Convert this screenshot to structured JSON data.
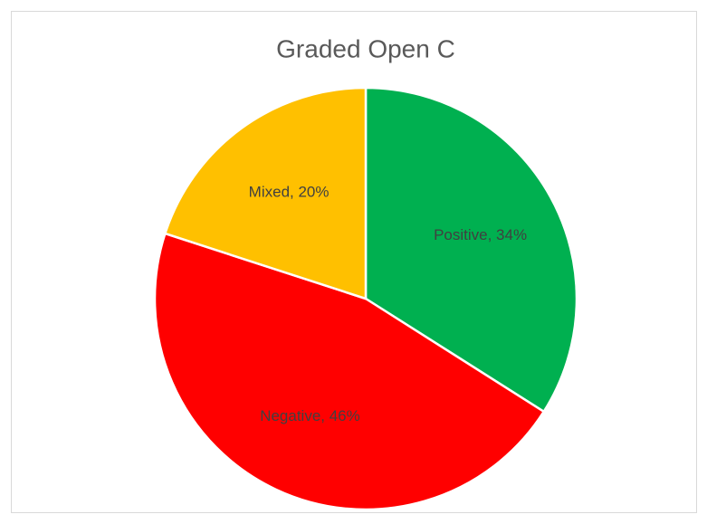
{
  "chart_data": {
    "type": "pie",
    "title": "Graded Open C",
    "categories": [
      "Positive",
      "Negative",
      "Mixed"
    ],
    "values": [
      34,
      46,
      20
    ],
    "value_labels": [
      "Positive, 34%",
      "Negative, 46%",
      "Mixed, 20%"
    ],
    "colors": [
      "#00b050",
      "#ff0000",
      "#ffc000"
    ]
  }
}
